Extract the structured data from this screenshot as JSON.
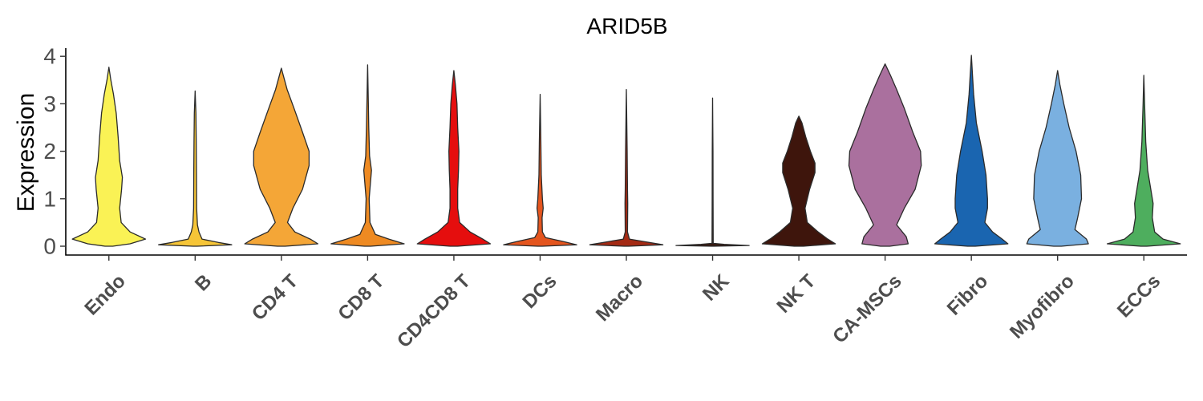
{
  "chart_data": {
    "type": "violin",
    "title": "ARID5B",
    "ylabel": "Expression",
    "xlabel": "",
    "ylim": [
      0,
      4.2
    ],
    "yticks": [
      0,
      1,
      2,
      3,
      4
    ],
    "grid": false,
    "legend": "none",
    "categories": [
      "Endo",
      "B",
      "CD4 T",
      "CD8 T",
      "CD4CD8 T",
      "DCs",
      "Macro",
      "NK",
      "NK T",
      "CA-MSCs",
      "Fibro",
      "Myofibro",
      "ECCs"
    ],
    "colors": [
      "#FAF255",
      "#F6C537",
      "#F4A637",
      "#EE8A22",
      "#E50E0E",
      "#E4551E",
      "#A42A14",
      "#3A1A10",
      "#3E150C",
      "#AA709E",
      "#1A65B0",
      "#7AB0E0",
      "#4EAE5E"
    ],
    "max_values": [
      3.77,
      3.27,
      3.75,
      3.82,
      3.7,
      3.2,
      3.3,
      3.12,
      2.74,
      3.84,
      4.02,
      3.7,
      3.6
    ],
    "density_profiles": [
      [
        [
          0,
          0.1
        ],
        [
          0.05,
          0.55
        ],
        [
          0.15,
          0.95
        ],
        [
          0.3,
          0.55
        ],
        [
          0.5,
          0.32
        ],
        [
          0.8,
          0.28
        ],
        [
          1.2,
          0.33
        ],
        [
          1.45,
          0.35
        ],
        [
          1.8,
          0.28
        ],
        [
          2.3,
          0.24
        ],
        [
          2.8,
          0.19
        ],
        [
          3.2,
          0.12
        ],
        [
          3.5,
          0.05
        ],
        [
          3.77,
          0
        ]
      ],
      [
        [
          0,
          0.05
        ],
        [
          0.03,
          0.95
        ],
        [
          0.08,
          0.6
        ],
        [
          0.15,
          0.18
        ],
        [
          0.3,
          0.1
        ],
        [
          0.45,
          0.06
        ],
        [
          0.8,
          0.04
        ],
        [
          1.5,
          0.035
        ],
        [
          2.2,
          0.03
        ],
        [
          2.8,
          0.02
        ],
        [
          3.27,
          0
        ]
      ],
      [
        [
          0,
          0.1
        ],
        [
          0.05,
          0.95
        ],
        [
          0.15,
          0.75
        ],
        [
          0.3,
          0.35
        ],
        [
          0.5,
          0.16
        ],
        [
          0.8,
          0.3
        ],
        [
          1.2,
          0.55
        ],
        [
          1.7,
          0.72
        ],
        [
          2.0,
          0.72
        ],
        [
          2.4,
          0.55
        ],
        [
          2.9,
          0.33
        ],
        [
          3.3,
          0.15
        ],
        [
          3.6,
          0.05
        ],
        [
          3.75,
          0
        ]
      ],
      [
        [
          0,
          0.08
        ],
        [
          0.05,
          0.95
        ],
        [
          0.15,
          0.55
        ],
        [
          0.25,
          0.2
        ],
        [
          0.5,
          0.06
        ],
        [
          1.0,
          0.04
        ],
        [
          1.6,
          0.1
        ],
        [
          1.9,
          0.05
        ],
        [
          2.5,
          0.03
        ],
        [
          3.2,
          0.015
        ],
        [
          3.82,
          0
        ]
      ],
      [
        [
          0,
          0.1
        ],
        [
          0.05,
          0.95
        ],
        [
          0.15,
          0.75
        ],
        [
          0.3,
          0.42
        ],
        [
          0.5,
          0.15
        ],
        [
          0.8,
          0.1
        ],
        [
          1.2,
          0.1
        ],
        [
          1.6,
          0.12
        ],
        [
          2.0,
          0.13
        ],
        [
          2.5,
          0.1
        ],
        [
          3.0,
          0.08
        ],
        [
          3.4,
          0.04
        ],
        [
          3.7,
          0
        ]
      ],
      [
        [
          0,
          0.06
        ],
        [
          0.03,
          0.95
        ],
        [
          0.1,
          0.6
        ],
        [
          0.18,
          0.14
        ],
        [
          0.3,
          0.06
        ],
        [
          0.6,
          0.05
        ],
        [
          0.8,
          0.08
        ],
        [
          1.0,
          0.06
        ],
        [
          1.5,
          0.03
        ],
        [
          2.2,
          0.02
        ],
        [
          3.2,
          0
        ]
      ],
      [
        [
          0,
          0.06
        ],
        [
          0.03,
          0.95
        ],
        [
          0.1,
          0.45
        ],
        [
          0.15,
          0.08
        ],
        [
          0.3,
          0.03
        ],
        [
          0.9,
          0.035
        ],
        [
          1.2,
          0.03
        ],
        [
          2.0,
          0.02
        ],
        [
          3.3,
          0
        ]
      ],
      [
        [
          0,
          0.03
        ],
        [
          0.015,
          0.95
        ],
        [
          0.04,
          0.3
        ],
        [
          0.06,
          0.015
        ],
        [
          1.0,
          0.012
        ],
        [
          2.0,
          0.01
        ],
        [
          3.12,
          0
        ]
      ],
      [
        [
          0,
          0.12
        ],
        [
          0.05,
          0.95
        ],
        [
          0.15,
          0.75
        ],
        [
          0.3,
          0.5
        ],
        [
          0.5,
          0.22
        ],
        [
          0.8,
          0.16
        ],
        [
          1.2,
          0.28
        ],
        [
          1.55,
          0.42
        ],
        [
          1.75,
          0.42
        ],
        [
          2.0,
          0.3
        ],
        [
          2.3,
          0.18
        ],
        [
          2.6,
          0.08
        ],
        [
          2.74,
          0
        ]
      ],
      [
        [
          0,
          0.12
        ],
        [
          0.05,
          0.6
        ],
        [
          0.2,
          0.55
        ],
        [
          0.45,
          0.3
        ],
        [
          0.8,
          0.5
        ],
        [
          1.2,
          0.78
        ],
        [
          1.7,
          0.94
        ],
        [
          2.0,
          0.92
        ],
        [
          2.4,
          0.72
        ],
        [
          2.9,
          0.5
        ],
        [
          3.3,
          0.3
        ],
        [
          3.6,
          0.14
        ],
        [
          3.84,
          0
        ]
      ],
      [
        [
          0,
          0.1
        ],
        [
          0.05,
          0.95
        ],
        [
          0.15,
          0.8
        ],
        [
          0.3,
          0.55
        ],
        [
          0.5,
          0.35
        ],
        [
          0.8,
          0.42
        ],
        [
          1.0,
          0.42
        ],
        [
          1.5,
          0.38
        ],
        [
          2.0,
          0.28
        ],
        [
          2.6,
          0.13
        ],
        [
          3.2,
          0.06
        ],
        [
          3.6,
          0.03
        ],
        [
          4.02,
          0
        ]
      ],
      [
        [
          0,
          0.1
        ],
        [
          0.05,
          0.8
        ],
        [
          0.15,
          0.75
        ],
        [
          0.35,
          0.45
        ],
        [
          0.6,
          0.52
        ],
        [
          1.0,
          0.62
        ],
        [
          1.5,
          0.6
        ],
        [
          2.0,
          0.48
        ],
        [
          2.5,
          0.3
        ],
        [
          3.0,
          0.16
        ],
        [
          3.4,
          0.06
        ],
        [
          3.7,
          0
        ]
      ],
      [
        [
          0,
          0.08
        ],
        [
          0.05,
          0.95
        ],
        [
          0.15,
          0.5
        ],
        [
          0.3,
          0.28
        ],
        [
          0.6,
          0.22
        ],
        [
          0.9,
          0.24
        ],
        [
          1.2,
          0.18
        ],
        [
          1.6,
          0.1
        ],
        [
          2.2,
          0.05
        ],
        [
          3.0,
          0.02
        ],
        [
          3.6,
          0
        ]
      ]
    ]
  }
}
